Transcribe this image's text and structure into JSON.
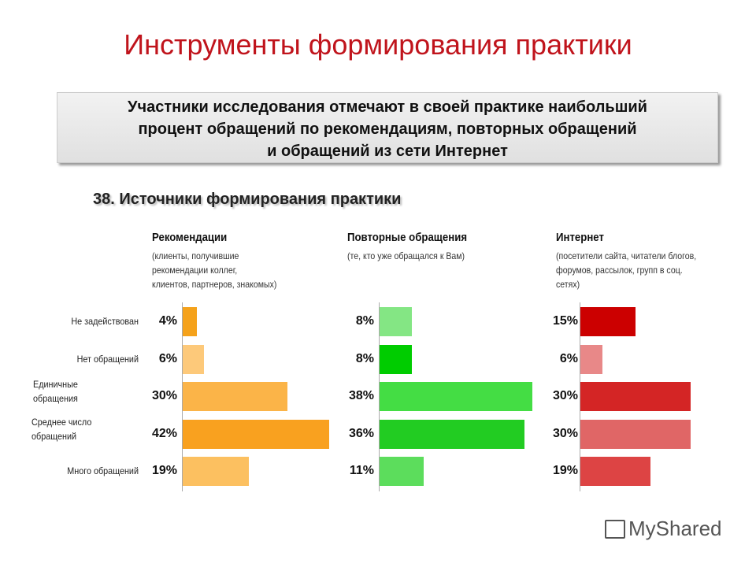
{
  "title": "Инструменты формирования практики",
  "summary": [
    "Участники исследования отмечают в своей практике наибольший",
    "процент обращений по рекомендациям, повторных обращений",
    "и обращений из сети Интернет"
  ],
  "subtitle": "38. Источники формирования практики",
  "logo": "MyShared",
  "chart_data": {
    "type": "bar",
    "orientation": "horizontal",
    "categories": [
      "Не задействован",
      "Нет обращений",
      "Единичные обращения",
      "Среднее число обращений",
      "Много обращений"
    ],
    "groups": [
      {
        "name": "Рекомендации",
        "description": [
          "(клиенты, получившие",
          "рекомендации коллег,",
          "клиентов, партнеров, знакомых)"
        ],
        "values": [
          4,
          6,
          30,
          42,
          19
        ],
        "labels": [
          "4%",
          "6%",
          "30%",
          "42%",
          "19%"
        ],
        "colors": [
          "#f5a21b",
          "#fdc97a",
          "#fbb448",
          "#f9a11f",
          "#fcc060"
        ]
      },
      {
        "name": "Повторные обращения",
        "description": [
          "(те, кто уже обращался к Вам)"
        ],
        "values": [
          8,
          8,
          38,
          36,
          11
        ],
        "labels": [
          "8%",
          "8%",
          "38%",
          "36%",
          "11%"
        ],
        "colors": [
          "#84e684",
          "#00cc00",
          "#44dd44",
          "#22cc22",
          "#5cdd5c"
        ]
      },
      {
        "name": "Интернет",
        "description": [
          "(посетители сайта, читатели блогов,",
          "форумов, рассылок, групп в соц.",
          "сетях)"
        ],
        "values": [
          15,
          6,
          30,
          30,
          19
        ],
        "labels": [
          "15%",
          "6%",
          "30%",
          "30%",
          "19%"
        ],
        "colors": [
          "#cc0000",
          "#e88888",
          "#d42525",
          "#e06666",
          "#dd4444"
        ]
      }
    ]
  }
}
